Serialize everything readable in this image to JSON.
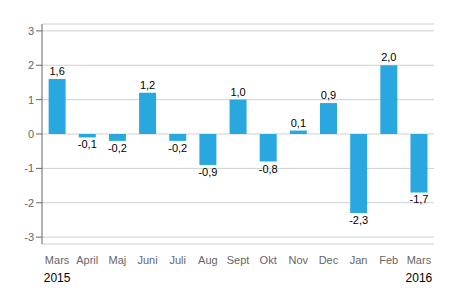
{
  "chart_data": {
    "type": "bar",
    "categories": [
      "Mars",
      "April",
      "Maj",
      "Juni",
      "Juli",
      "Aug",
      "Sept",
      "Okt",
      "Nov",
      "Dec",
      "Jan",
      "Feb",
      "Mars"
    ],
    "values": [
      1.6,
      -0.1,
      -0.2,
      1.2,
      -0.2,
      -0.9,
      1.0,
      -0.8,
      0.1,
      0.9,
      -2.3,
      2.0,
      -1.7
    ],
    "value_labels": [
      "1,6",
      "-0,1",
      "-0,2",
      "1,2",
      "-0,2",
      "-0,9",
      "1,0",
      "-0,8",
      "0,1",
      "0,9",
      "-2,3",
      "2,0",
      "-1,7"
    ],
    "data_labels": true,
    "color": "#29a8e0",
    "ylim": [
      -3.2,
      3.2
    ],
    "yticks": [
      -3,
      -2,
      -1,
      0,
      1,
      2,
      3
    ],
    "grid": true,
    "annotations": [
      {
        "text": "2015",
        "x": 0
      },
      {
        "text": "2016",
        "x": 12
      }
    ]
  }
}
